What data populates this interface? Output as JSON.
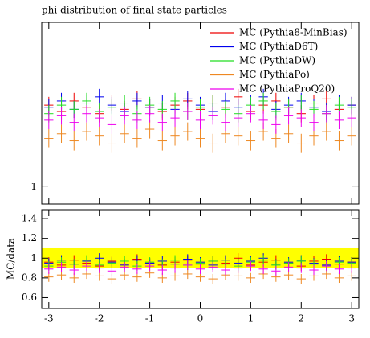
{
  "chart_data": [
    {
      "type": "errorbar",
      "title": "phi distribution of final state particles",
      "log_scale": true,
      "x": [
        -3.0,
        -2.75,
        -2.5,
        -2.25,
        -2.0,
        -1.75,
        -1.5,
        -1.25,
        -1.0,
        -0.75,
        -0.5,
        -0.25,
        0.0,
        0.25,
        0.5,
        0.75,
        1.0,
        1.25,
        1.5,
        1.75,
        2.0,
        2.25,
        2.5,
        2.75,
        3.0
      ],
      "xlim": [
        -3.14,
        3.14
      ],
      "ylim": [
        0.94,
        1.8
      ],
      "yticks": [
        1
      ],
      "legend": "upper right",
      "series": [
        {
          "name": "MC (Pythia8-MinBias)",
          "color": "#ee0000",
          "error": 0.04,
          "values": [
            1.34,
            1.31,
            1.36,
            1.33,
            1.3,
            1.35,
            1.32,
            1.37,
            1.33,
            1.31,
            1.34,
            1.36,
            1.32,
            1.35,
            1.33,
            1.38,
            1.31,
            1.34,
            1.36,
            1.33,
            1.3,
            1.35,
            1.37,
            1.32,
            1.34
          ]
        },
        {
          "name": "MC (PythiaD6T)",
          "color": "#0000ee",
          "error": 0.04,
          "values": [
            1.33,
            1.36,
            1.32,
            1.35,
            1.38,
            1.34,
            1.31,
            1.36,
            1.33,
            1.35,
            1.32,
            1.37,
            1.34,
            1.31,
            1.36,
            1.33,
            1.35,
            1.38,
            1.32,
            1.34,
            1.36,
            1.33,
            1.31,
            1.35,
            1.34
          ]
        },
        {
          "name": "MC (PythiaDW)",
          "color": "#22dd22",
          "error": 0.04,
          "values": [
            1.3,
            1.34,
            1.32,
            1.36,
            1.31,
            1.33,
            1.35,
            1.3,
            1.34,
            1.32,
            1.36,
            1.31,
            1.33,
            1.35,
            1.32,
            1.3,
            1.34,
            1.36,
            1.31,
            1.33,
            1.35,
            1.32,
            1.3,
            1.34,
            1.33
          ]
        },
        {
          "name": "MC (PythiaPo)",
          "color": "#ee8822",
          "error": 0.04,
          "values": [
            1.19,
            1.21,
            1.18,
            1.22,
            1.2,
            1.17,
            1.21,
            1.19,
            1.23,
            1.18,
            1.2,
            1.22,
            1.19,
            1.17,
            1.21,
            1.2,
            1.18,
            1.22,
            1.19,
            1.21,
            1.17,
            1.2,
            1.22,
            1.18,
            1.2
          ]
        },
        {
          "name": "MC (PythiaProQ20)",
          "color": "#ee00ee",
          "error": 0.04,
          "values": [
            1.27,
            1.29,
            1.26,
            1.3,
            1.28,
            1.25,
            1.29,
            1.27,
            1.3,
            1.26,
            1.28,
            1.31,
            1.27,
            1.29,
            1.26,
            1.28,
            1.3,
            1.27,
            1.25,
            1.29,
            1.28,
            1.26,
            1.3,
            1.27,
            1.28
          ]
        }
      ]
    },
    {
      "type": "errorbar",
      "ylabel": "MC/data",
      "x": [
        -3.0,
        -2.75,
        -2.5,
        -2.25,
        -2.0,
        -1.75,
        -1.5,
        -1.25,
        -1.0,
        -0.75,
        -0.5,
        -0.25,
        0.0,
        0.25,
        0.5,
        0.75,
        1.0,
        1.25,
        1.5,
        1.75,
        2.0,
        2.25,
        2.5,
        2.75,
        3.0
      ],
      "xlim": [
        -3.14,
        3.14
      ],
      "xticks": [
        -3,
        -2,
        -1,
        0,
        1,
        2,
        3
      ],
      "ylim": [
        0.49,
        1.49
      ],
      "yticks": [
        0.6,
        0.8,
        1,
        1.2,
        1.4
      ],
      "band": [
        0.9,
        1.1
      ],
      "band_color": "#ffff00",
      "series": [
        {
          "color": "#ee0000",
          "error": 0.05,
          "values": [
            0.96,
            0.93,
            0.98,
            0.95,
            0.92,
            0.97,
            0.94,
            0.99,
            0.95,
            0.93,
            0.96,
            0.98,
            0.94,
            0.97,
            0.95,
            1.0,
            0.93,
            0.96,
            0.98,
            0.95,
            0.92,
            0.97,
            0.99,
            0.94,
            0.96
          ]
        },
        {
          "color": "#0000ee",
          "error": 0.05,
          "values": [
            0.95,
            0.98,
            0.94,
            0.97,
            1.0,
            0.96,
            0.93,
            0.98,
            0.95,
            0.97,
            0.94,
            0.99,
            0.96,
            0.93,
            0.98,
            0.95,
            0.97,
            1.0,
            0.94,
            0.96,
            0.98,
            0.95,
            0.93,
            0.97,
            0.96
          ]
        },
        {
          "color": "#22dd22",
          "error": 0.05,
          "values": [
            0.92,
            0.96,
            0.94,
            0.98,
            0.93,
            0.95,
            0.97,
            0.92,
            0.96,
            0.94,
            0.98,
            0.93,
            0.95,
            0.97,
            0.94,
            0.92,
            0.96,
            0.98,
            0.93,
            0.95,
            0.97,
            0.94,
            0.92,
            0.96,
            0.95
          ]
        },
        {
          "color": "#ee8822",
          "error": 0.05,
          "values": [
            0.81,
            0.83,
            0.8,
            0.84,
            0.82,
            0.79,
            0.83,
            0.81,
            0.85,
            0.8,
            0.82,
            0.84,
            0.81,
            0.79,
            0.83,
            0.82,
            0.8,
            0.84,
            0.81,
            0.83,
            0.79,
            0.82,
            0.84,
            0.8,
            0.82
          ]
        },
        {
          "color": "#ee00ee",
          "error": 0.05,
          "values": [
            0.89,
            0.91,
            0.88,
            0.92,
            0.9,
            0.87,
            0.91,
            0.89,
            0.92,
            0.88,
            0.9,
            0.93,
            0.89,
            0.91,
            0.88,
            0.9,
            0.92,
            0.89,
            0.87,
            0.91,
            0.9,
            0.88,
            0.92,
            0.89,
            0.9
          ]
        }
      ]
    }
  ]
}
